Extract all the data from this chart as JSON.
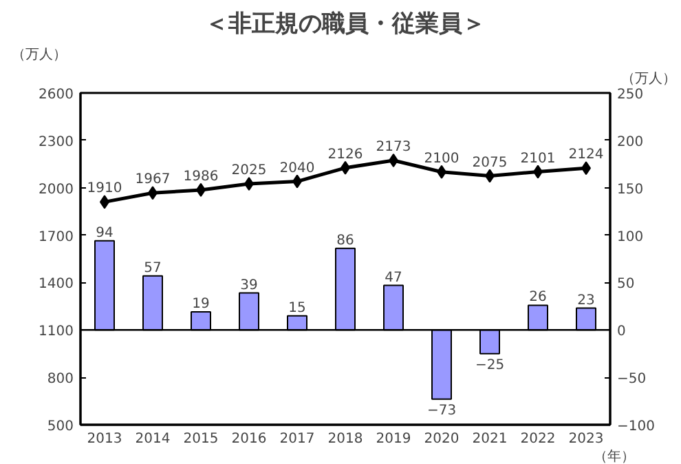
{
  "chart_data": {
    "type": "bar",
    "title": "＜非正規の職員・従業員＞",
    "ylabel": "（万人）",
    "y2label": "（万人）",
    "xlabel": "（年）",
    "categories": [
      "2013",
      "2014",
      "2015",
      "2016",
      "2017",
      "2018",
      "2019",
      "2020",
      "2021",
      "2022",
      "2023"
    ],
    "series": [
      {
        "type": "line",
        "color": "#000000",
        "marker": "diamond",
        "line_style": "solid",
        "values": [
          1910,
          1967,
          1986,
          2025,
          2040,
          2126,
          2173,
          2100,
          2075,
          2101,
          2124
        ]
      },
      {
        "axis": "y2",
        "color": "#9999ff",
        "values": [
          94,
          57,
          19,
          39,
          15,
          86,
          47,
          -73,
          -25,
          26,
          23
        ]
      }
    ],
    "ylim": [
      500,
      2600
    ],
    "yticks": [
      500,
      800,
      1100,
      1400,
      1700,
      2000,
      2300,
      2600
    ],
    "y2lim": [
      -100,
      250
    ],
    "y2ticks": [
      -100,
      -50,
      0,
      50,
      100,
      150,
      200,
      250
    ],
    "ref_lines": [
      {
        "axis": "y2",
        "value": 0,
        "color": "#000000"
      }
    ],
    "data_labels": true,
    "grid": false
  }
}
